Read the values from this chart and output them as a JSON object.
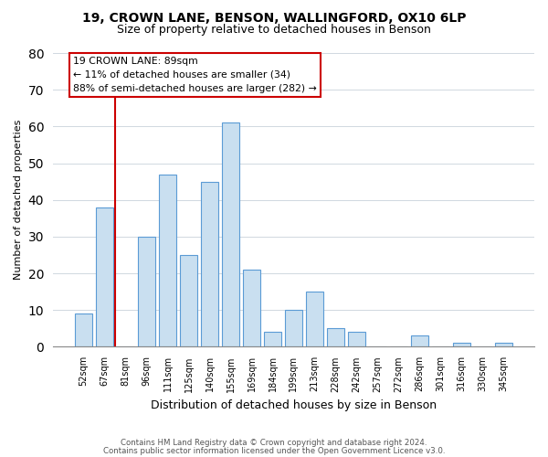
{
  "title1": "19, CROWN LANE, BENSON, WALLINGFORD, OX10 6LP",
  "title2": "Size of property relative to detached houses in Benson",
  "xlabel": "Distribution of detached houses by size in Benson",
  "ylabel": "Number of detached properties",
  "categories": [
    "52sqm",
    "67sqm",
    "81sqm",
    "96sqm",
    "111sqm",
    "125sqm",
    "140sqm",
    "155sqm",
    "169sqm",
    "184sqm",
    "199sqm",
    "213sqm",
    "228sqm",
    "242sqm",
    "257sqm",
    "272sqm",
    "286sqm",
    "301sqm",
    "316sqm",
    "330sqm",
    "345sqm"
  ],
  "values": [
    9,
    38,
    0,
    30,
    47,
    25,
    45,
    61,
    21,
    4,
    10,
    15,
    5,
    4,
    0,
    0,
    3,
    0,
    1,
    0,
    1
  ],
  "bar_color": "#c9dff0",
  "bar_edge_color": "#5b9bd5",
  "vline_color": "#cc0000",
  "vline_pos": 1.5,
  "annotation_lines": [
    "19 CROWN LANE: 89sqm",
    "← 11% of detached houses are smaller (34)",
    "88% of semi-detached houses are larger (282) →"
  ],
  "ylim": [
    0,
    80
  ],
  "yticks": [
    0,
    10,
    20,
    30,
    40,
    50,
    60,
    70,
    80
  ],
  "footer1": "Contains HM Land Registry data © Crown copyright and database right 2024.",
  "footer2": "Contains public sector information licensed under the Open Government Licence v3.0."
}
